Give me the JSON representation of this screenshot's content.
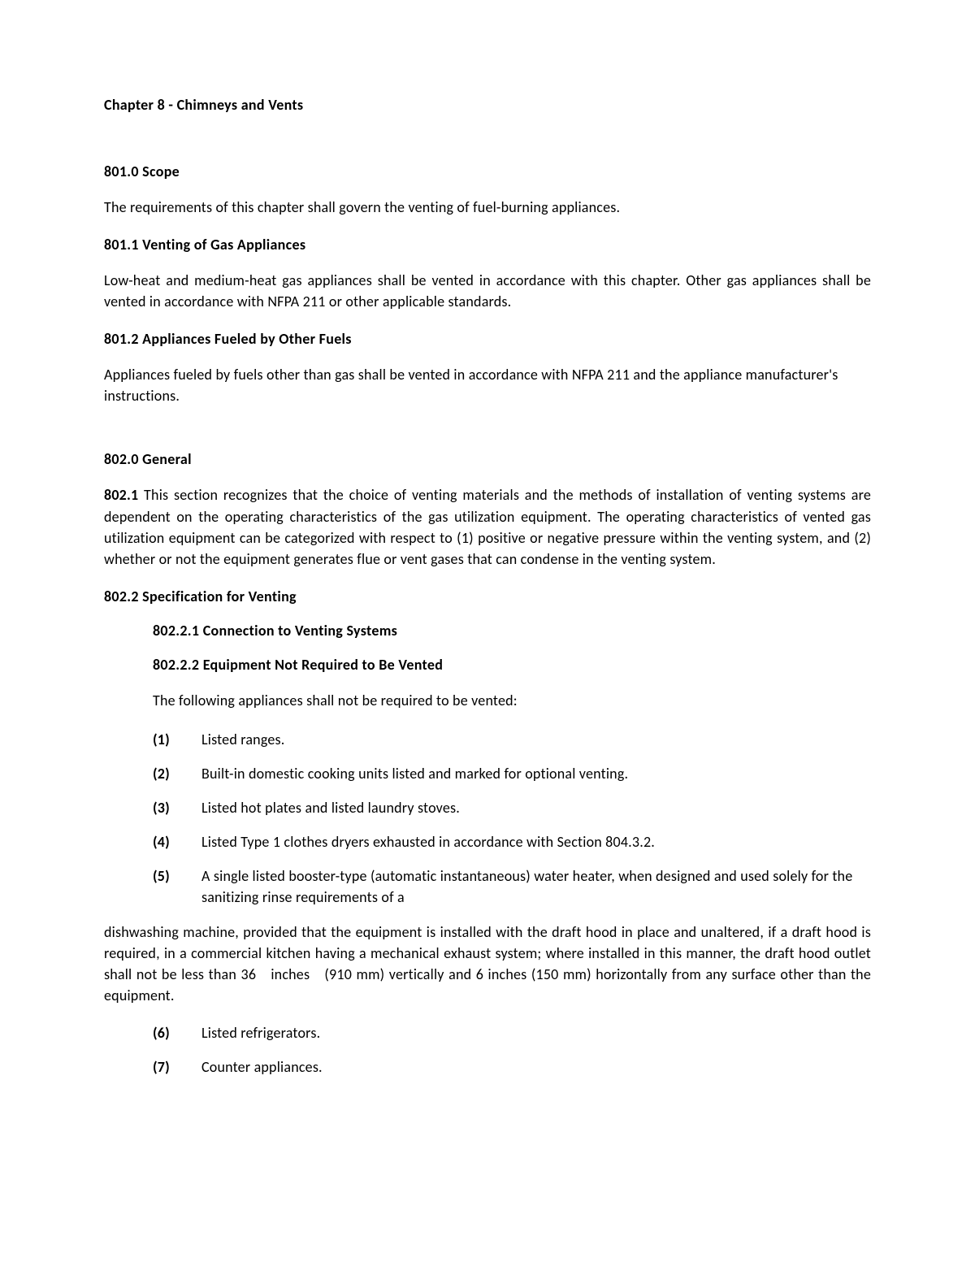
{
  "chapter_title": "Chapter 8 - Chimneys and Vents",
  "s801_0": {
    "heading": "801.0 Scope",
    "body": "The requirements of this chapter shall govern the venting of fuel-burning appliances."
  },
  "s801_1": {
    "heading": "801.1 Venting of Gas Appliances",
    "body": "Low-heat and medium-heat gas appliances shall be vented in accordance with this chapter. Other gas appliances shall be vented in accordance with NFPA 211 or other applicable standards."
  },
  "s801_2": {
    "heading": "801.2 Appliances Fueled by Other Fuels",
    "body": "Appliances fueled by fuels other than gas shall be vented in accordance with NFPA 211 and the appliance manufacturer's instructions."
  },
  "s802_0": {
    "heading": "802.0 General"
  },
  "s802_1": {
    "lead": "802.1",
    "body": " This section recognizes that the choice of venting materials and the methods of installation of venting systems are dependent on the operating characteristics of the gas utilization equipment. The operating characteristics of vented gas utilization equipment can be categorized with respect to (1) positive or negative pressure within the venting system, and (2) whether or not the equipment generates flue or vent gases that can condense in the venting system."
  },
  "s802_2": {
    "heading": "802.2 Specification for Venting"
  },
  "s802_2_1": {
    "heading": "802.2.1 Connection to Venting Systems"
  },
  "s802_2_2": {
    "heading": "802.2.2 Equipment Not Required to Be Vented",
    "intro": "The following appliances shall not be required to be vented:",
    "items": [
      {
        "num": "(1)",
        "text": "Listed ranges."
      },
      {
        "num": "(2)",
        "text": "Built-in domestic cooking units listed and marked for optional venting."
      },
      {
        "num": "(3)",
        "text": "Listed hot plates and listed laundry stoves."
      },
      {
        "num": "(4)",
        "text": "Listed Type 1 clothes dryers exhausted in accordance with Section 804.3.2."
      },
      {
        "num": "(5)",
        "text": "A single listed booster-type (automatic instantaneous) water heater, when designed and used solely for the sanitizing rinse requirements of a"
      }
    ],
    "item5_continuation": "dishwashing machine, provided that the equipment is installed with the draft hood in place and unaltered, if a draft hood is required, in a commercial kitchen having a mechanical exhaust system; where installed in this manner, the draft hood outlet shall not be less than 36 inches (910 mm) vertically and 6 inches (150 mm) horizontally from any surface other than the equipment.",
    "items_after": [
      {
        "num": "(6)",
        "text": "Listed refrigerators."
      },
      {
        "num": "(7)",
        "text": "Counter appliances."
      }
    ]
  }
}
